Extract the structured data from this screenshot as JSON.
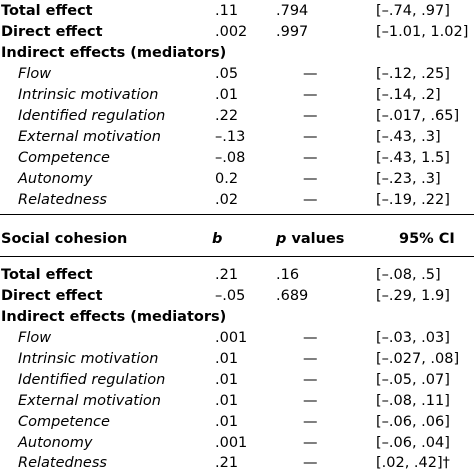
{
  "section1": {
    "rows": [
      {
        "label": "Total effect",
        "b": ".11",
        "p": ".794",
        "ci": "[–.74, .97]",
        "kind": "bold"
      },
      {
        "label": "Direct effect",
        "b": ".002",
        "p": ".997",
        "ci": "[–1.01, 1.02]",
        "kind": "bold"
      },
      {
        "label": "Indirect effects (mediators)",
        "b": "",
        "p": "",
        "ci": "",
        "kind": "bold"
      },
      {
        "label": "Flow",
        "b": ".05",
        "p": "—",
        "ci": "[–.12, .25]",
        "kind": "mediator"
      },
      {
        "label": "Intrinsic motivation",
        "b": ".01",
        "p": "—",
        "ci": "[–.14, .2]",
        "kind": "mediator"
      },
      {
        "label": "Identified regulation",
        "b": ".22",
        "p": "—",
        "ci": "[–.017, .65]",
        "kind": "mediator"
      },
      {
        "label": "External motivation",
        "b": "–.13",
        "p": "—",
        "ci": "[–.43, .3]",
        "kind": "mediator"
      },
      {
        "label": "Competence",
        "b": "–.08",
        "p": "—",
        "ci": "[–.43, 1.5]",
        "kind": "mediator"
      },
      {
        "label": "Autonomy",
        "b": "0.2",
        "p": "—",
        "ci": "[–.23, .3]",
        "kind": "mediator"
      },
      {
        "label": "Relatedness",
        "b": ".02",
        "p": "—",
        "ci": "[–.19, .22]",
        "kind": "mediator"
      }
    ]
  },
  "section2": {
    "header": {
      "label": "Social cohesion",
      "b": "b",
      "p_italic": "p",
      "p_rest": " values",
      "ci": "95% CI"
    },
    "rows": [
      {
        "label": "Total effect",
        "b": ".21",
        "p": ".16",
        "ci": "[–.08, .5]",
        "kind": "bold"
      },
      {
        "label": "Direct effect",
        "b": "–.05",
        "p": ".689",
        "ci": "[–.29, 1.9]",
        "kind": "bold"
      },
      {
        "label": "Indirect effects (mediators)",
        "b": "",
        "p": "",
        "ci": "",
        "kind": "bold"
      },
      {
        "label": "Flow",
        "b": ".001",
        "p": "—",
        "ci": "[–.03, .03]",
        "kind": "mediator"
      },
      {
        "label": "Intrinsic motivation",
        "b": ".01",
        "p": "—",
        "ci": "[–.027, .08]",
        "kind": "mediator"
      },
      {
        "label": "Identified regulation",
        "b": ".01",
        "p": "—",
        "ci": "[–.05, .07]",
        "kind": "mediator"
      },
      {
        "label": "External motivation",
        "b": ".01",
        "p": "—",
        "ci": "[–.08, .11]",
        "kind": "mediator"
      },
      {
        "label": "Competence",
        "b": ".01",
        "p": "—",
        "ci": "[–.06, .06]",
        "kind": "mediator"
      },
      {
        "label": "Autonomy",
        "b": ".001",
        "p": "—",
        "ci": "[–.06, .04]",
        "kind": "mediator"
      },
      {
        "label": "Relatedness",
        "b": ".21",
        "p": "—",
        "ci": "[.02, .42]†",
        "kind": "mediator"
      }
    ]
  }
}
